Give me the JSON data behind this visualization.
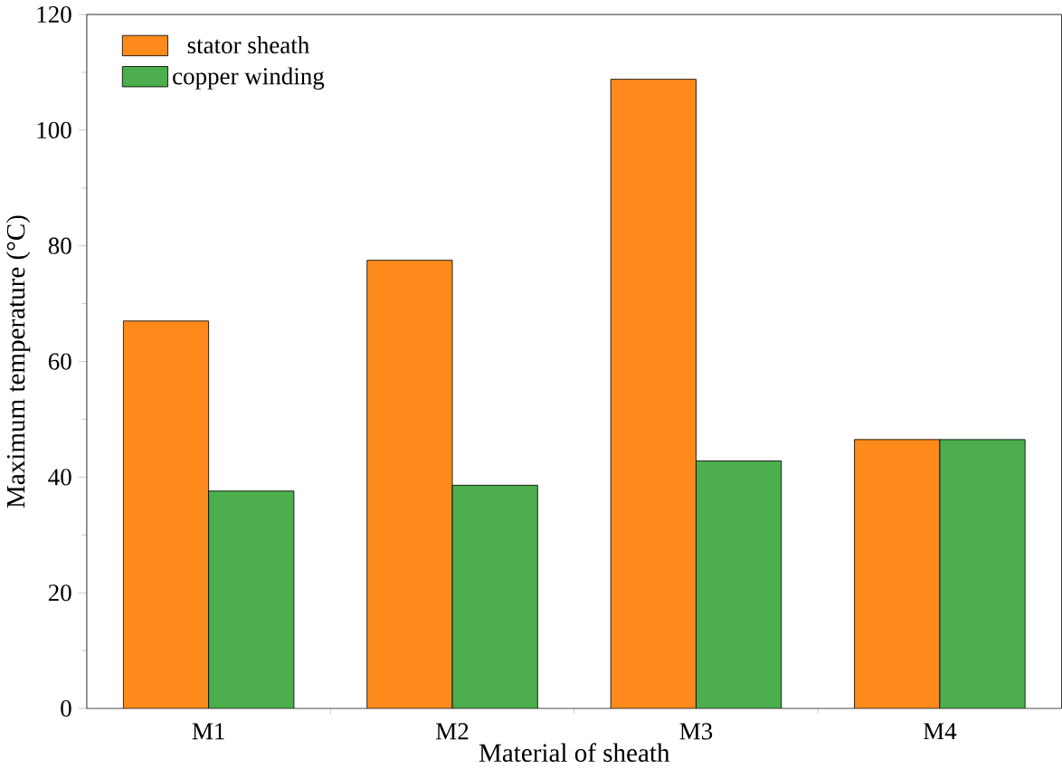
{
  "chart_data": {
    "type": "bar",
    "xlabel": "Material of sheath",
    "ylabel": "Maximum temperature (°C)",
    "categories": [
      "M1",
      "M2",
      "M3",
      "M4"
    ],
    "series": [
      {
        "name": "stator sheath",
        "color": "#ff8a1c",
        "values": [
          67,
          77.5,
          108.8,
          46.5
        ]
      },
      {
        "name": "copper winding",
        "color": "#4cae4c",
        "values": [
          37.6,
          38.6,
          42.8,
          46.5
        ]
      }
    ],
    "ylim": [
      0,
      120
    ],
    "yticks": [
      0,
      20,
      40,
      60,
      80,
      100,
      120
    ],
    "legend": "top left",
    "grid": false
  }
}
